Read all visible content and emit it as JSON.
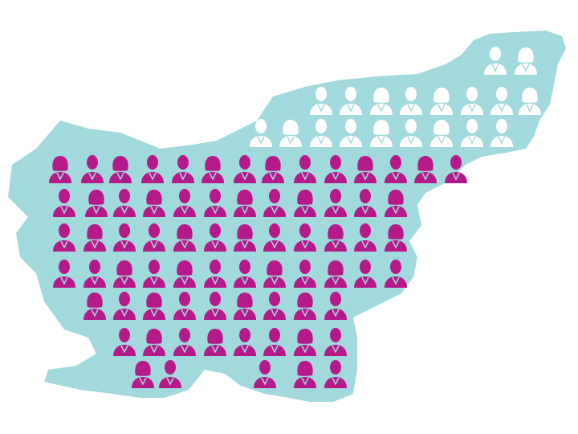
{
  "map_color": "#a2d9dc",
  "icon_colors": [
    "#b5198a",
    "#ffffff"
  ]
}
